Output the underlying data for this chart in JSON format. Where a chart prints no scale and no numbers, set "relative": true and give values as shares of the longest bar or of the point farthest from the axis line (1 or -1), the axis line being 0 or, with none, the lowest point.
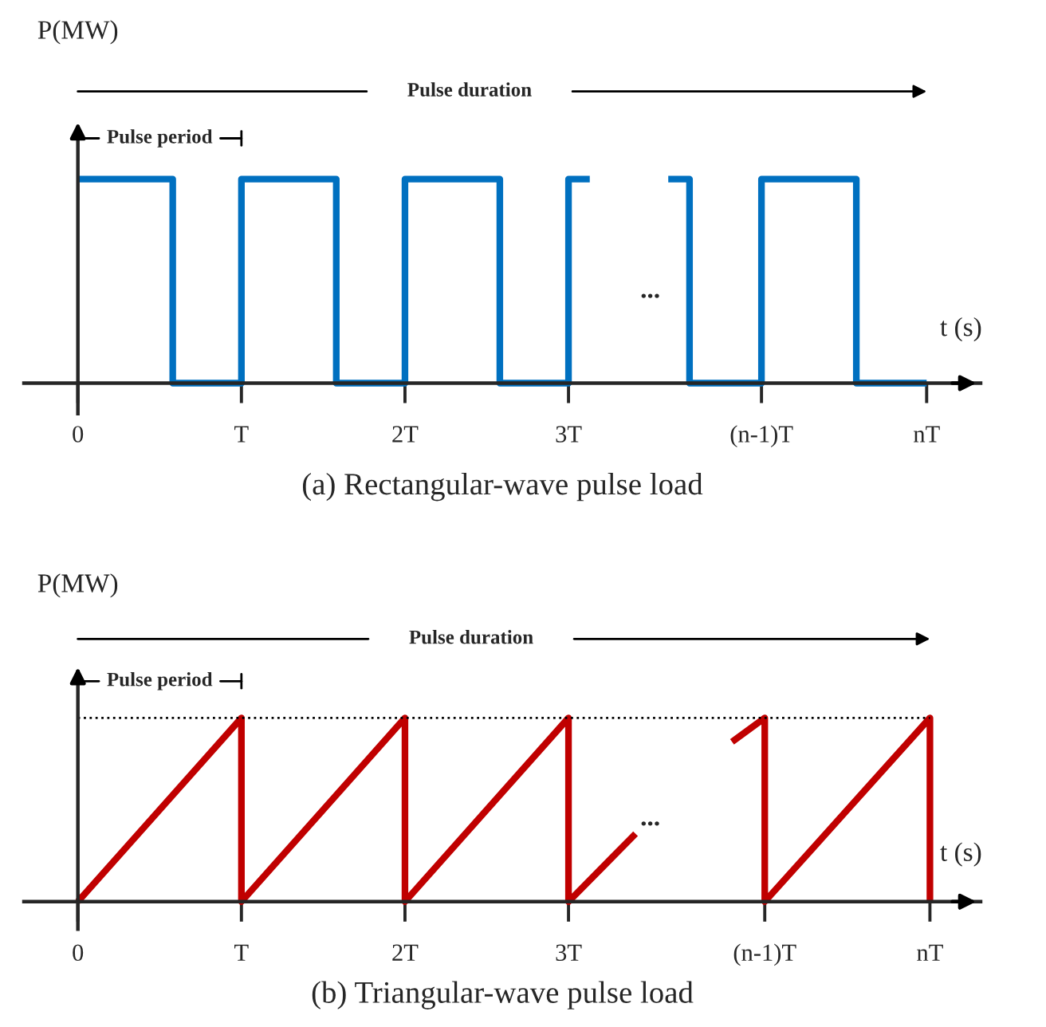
{
  "chart_data": [
    {
      "type": "line",
      "relative": true,
      "title": "(a) Rectangular-wave pulse load",
      "xlabel": "t (s)",
      "ylabel": "P(MW)",
      "tick_labels": "x",
      "annotations": [
        "Pulse duration",
        "Pulse period",
        "..."
      ],
      "xlim": [
        -0.33,
        5.52
      ],
      "xticks": [
        0,
        {
          "value": 1,
          "label": "T"
        },
        {
          "value": 2,
          "label": "2T"
        },
        {
          "value": 3,
          "label": "3T"
        },
        {
          "value": 4.18,
          "label": "(n-1)T"
        },
        {
          "value": 5.19,
          "label": "nT"
        }
      ],
      "series": [
        {
          "color": "#0070c0",
          "x": [
            0,
            0.58,
            0.58,
            1,
            1,
            1.58,
            1.58,
            2,
            2,
            2.58,
            2.58,
            3,
            3,
            3.13,
            3.37,
            3.61,
            3.74,
            3.74,
            4.18,
            4.18,
            4.76,
            4.76,
            5.19
          ],
          "values": [
            1,
            1,
            0,
            0,
            1,
            1,
            0,
            0,
            1,
            1,
            0,
            0,
            1,
            1,
            null,
            1,
            1,
            0,
            0,
            1,
            1,
            0,
            0
          ]
        }
      ]
    },
    {
      "type": "line",
      "relative": true,
      "title": "(b) Triangular-wave pulse load",
      "xlabel": "t (s)",
      "ylabel": "P(MW)",
      "tick_labels": "x",
      "annotations": [
        "Pulse duration",
        "Pulse period",
        "..."
      ],
      "xlim": [
        -0.33,
        5.52
      ],
      "xticks": [
        0,
        {
          "value": 1,
          "label": "T"
        },
        {
          "value": 2,
          "label": "2T"
        },
        {
          "value": 3,
          "label": "3T"
        },
        {
          "value": 4.2,
          "label": "(n-1)T"
        },
        {
          "value": 5.21,
          "label": "nT"
        }
      ],
      "ref_lines": [
        {
          "axis": "y",
          "value": 1,
          "color": "#000000",
          "line_style": "dotted"
        }
      ],
      "series": [
        {
          "color": "#c00000",
          "x": [
            0,
            1,
            1,
            2,
            2,
            3,
            3,
            3.41,
            3.7,
            4.0,
            4.2,
            4.2,
            5.21,
            5.21
          ],
          "values": [
            0,
            1,
            0,
            1,
            0,
            1,
            0,
            0.37,
            null,
            0.87,
            1,
            0,
            1,
            0
          ]
        }
      ]
    }
  ]
}
